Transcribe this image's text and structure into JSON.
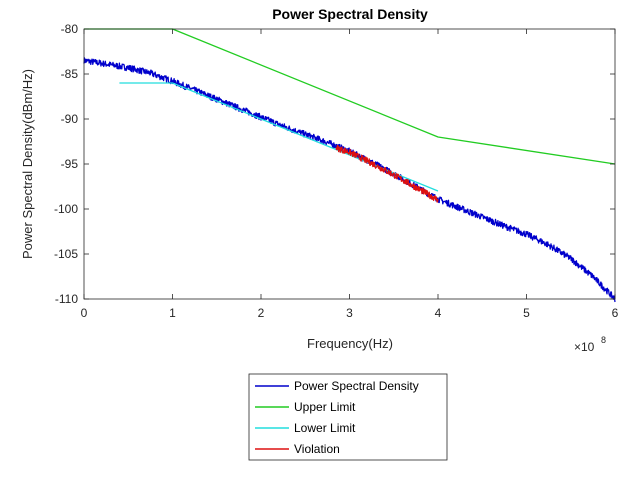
{
  "chart_data": {
    "type": "line",
    "title": "Power Spectral Density",
    "xlabel": "Frequency(Hz)",
    "ylabel": "Power Spectral Density(dBm/Hz)",
    "x_multiplier": "×10",
    "x_multiplier_exp": "8",
    "xlim": [
      0,
      6
    ],
    "ylim": [
      -110,
      -80
    ],
    "x_unit_scale": 100000000,
    "xticks": [
      0,
      1,
      2,
      3,
      4,
      5,
      6
    ],
    "xtick_labels": [
      "0",
      "1",
      "2",
      "3",
      "4",
      "5",
      "6"
    ],
    "yticks": [
      -80,
      -85,
      -90,
      -95,
      -100,
      -105,
      -110
    ],
    "ytick_labels": [
      "-80",
      "-85",
      "-90",
      "-95",
      "-100",
      "-105",
      "-110"
    ],
    "grid": false,
    "legend_position": "bottom-center",
    "series": [
      {
        "name": "Power Spectral Density",
        "color": "#0000cc",
        "x": [
          0,
          0.25,
          0.5,
          0.75,
          1.0,
          1.25,
          1.5,
          1.75,
          2.0,
          2.25,
          2.5,
          2.75,
          3.0,
          3.25,
          3.5,
          3.75,
          4.0,
          4.25,
          4.5,
          4.75,
          5.0,
          5.25,
          5.5,
          5.75,
          6.0
        ],
        "y": [
          -83.5,
          -83.9,
          -84.3,
          -84.9,
          -85.8,
          -86.8,
          -87.8,
          -88.8,
          -89.8,
          -90.8,
          -91.7,
          -92.6,
          -93.6,
          -94.8,
          -96.1,
          -97.5,
          -98.9,
          -99.9,
          -100.9,
          -101.9,
          -102.8,
          -104.0,
          -105.5,
          -107.5,
          -110.0
        ]
      },
      {
        "name": "Upper Limit",
        "color": "#22cc22",
        "x": [
          0,
          1,
          4,
          6
        ],
        "y": [
          -80,
          -80,
          -92,
          -95
        ]
      },
      {
        "name": "Lower Limit",
        "color": "#22dddd",
        "x": [
          0.4,
          1.0,
          4.0
        ],
        "y": [
          -86,
          -86,
          -98
        ]
      },
      {
        "name": "Violation",
        "color": "#dd1111",
        "x": [
          2.85,
          3.0,
          3.25,
          3.5,
          3.75,
          4.0
        ],
        "y": [
          -93.2,
          -93.7,
          -94.9,
          -96.2,
          -97.6,
          -99.0
        ]
      }
    ]
  }
}
